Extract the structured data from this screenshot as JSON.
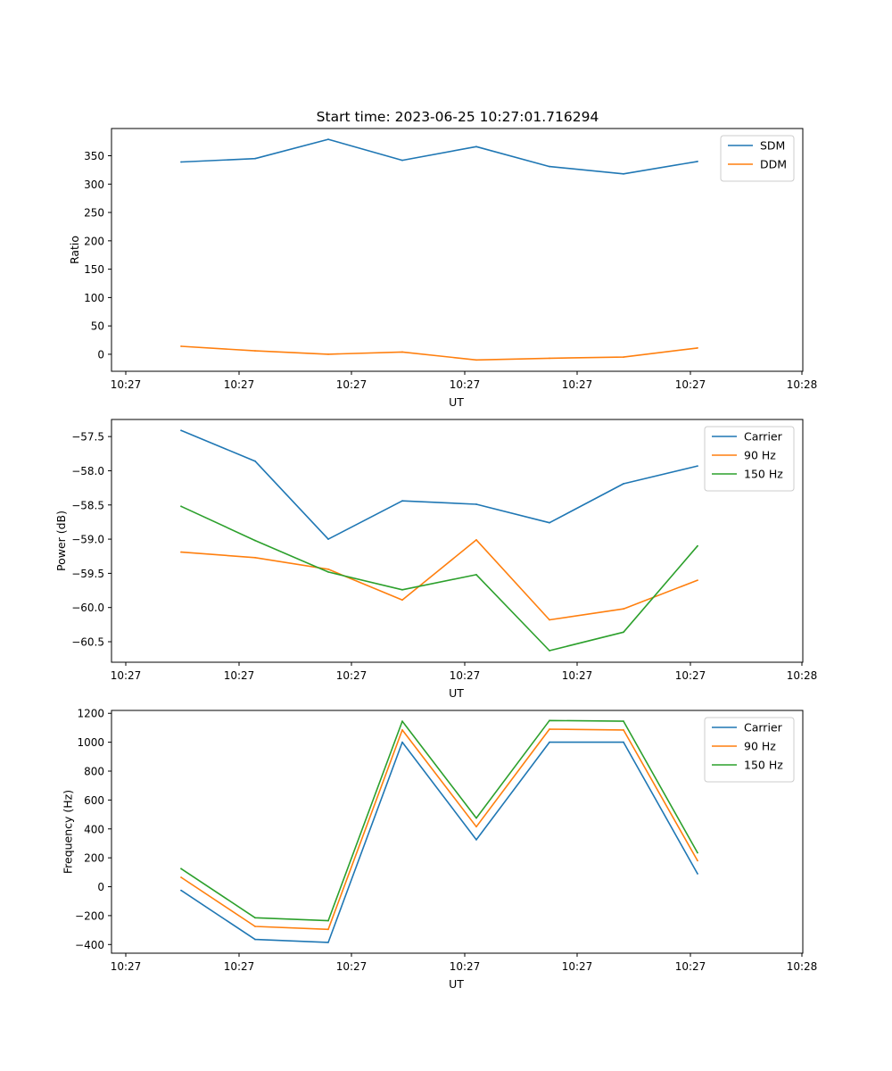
{
  "figure_title": "Start time: 2023-06-25 10:27:01.716294",
  "colors": {
    "blue": "#1f77b4",
    "orange": "#ff7f0e",
    "green": "#2ca02c"
  },
  "chart_data": [
    {
      "type": "line",
      "title": "Start time: 2023-06-25 10:27:01.716294",
      "xlabel": "UT",
      "ylabel": "Ratio",
      "x_tick_labels": [
        "10:27",
        "10:27",
        "10:27",
        "10:27",
        "10:27",
        "10:27",
        "10:28"
      ],
      "y_ticks": [
        0,
        50,
        100,
        150,
        200,
        250,
        300,
        350
      ],
      "ylim": [
        -30,
        398
      ],
      "legend_position": "upper right",
      "grid": false,
      "series": [
        {
          "name": "SDM",
          "color": "blue",
          "values": [
            339,
            345,
            379,
            342,
            366,
            331,
            318,
            340
          ]
        },
        {
          "name": "DDM",
          "color": "orange",
          "values": [
            14,
            6,
            0,
            4,
            -10,
            -7,
            -5,
            11
          ]
        }
      ]
    },
    {
      "type": "line",
      "title": "",
      "xlabel": "UT",
      "ylabel": "Power (dB)",
      "x_tick_labels": [
        "10:27",
        "10:27",
        "10:27",
        "10:27",
        "10:27",
        "10:27",
        "10:28"
      ],
      "y_ticks": [
        -57.5,
        -58.0,
        -58.5,
        -59.0,
        -59.5,
        -60.0,
        -60.5
      ],
      "y_tick_labels": [
        "−57.5",
        "−58.0",
        "−58.5",
        "−59.0",
        "−59.5",
        "−60.0",
        "−60.5"
      ],
      "ylim": [
        -60.8,
        -57.25
      ],
      "legend_position": "upper right",
      "grid": false,
      "series": [
        {
          "name": "Carrier",
          "color": "blue",
          "values": [
            -57.41,
            -57.86,
            -59.0,
            -58.44,
            -58.49,
            -58.76,
            -58.19,
            -57.93
          ]
        },
        {
          "name": "90 Hz",
          "color": "orange",
          "values": [
            -59.19,
            -59.27,
            -59.44,
            -59.89,
            -59.01,
            -60.18,
            -60.02,
            -59.6
          ]
        },
        {
          "name": "150 Hz",
          "color": "green",
          "values": [
            -58.52,
            -59.02,
            -59.48,
            -59.74,
            -59.52,
            -60.63,
            -60.36,
            -59.1
          ]
        }
      ]
    },
    {
      "type": "line",
      "title": "",
      "xlabel": "UT",
      "ylabel": "Frequency (Hz)",
      "x_tick_labels": [
        "10:27",
        "10:27",
        "10:27",
        "10:27",
        "10:27",
        "10:27",
        "10:28"
      ],
      "y_ticks": [
        -400,
        -200,
        0,
        200,
        400,
        600,
        800,
        1000,
        1200
      ],
      "y_tick_labels": [
        "−400",
        "−200",
        "0",
        "200",
        "400",
        "600",
        "800",
        "1000",
        "1200"
      ],
      "ylim": [
        -460,
        1220
      ],
      "legend_position": "upper right",
      "grid": false,
      "series": [
        {
          "name": "Carrier",
          "color": "blue",
          "values": [
            -25,
            -365,
            -385,
            1000,
            325,
            1000,
            1000,
            90
          ]
        },
        {
          "name": "90 Hz",
          "color": "orange",
          "values": [
            65,
            -275,
            -295,
            1085,
            415,
            1090,
            1085,
            180
          ]
        },
        {
          "name": "150 Hz",
          "color": "green",
          "values": [
            125,
            -215,
            -235,
            1145,
            475,
            1150,
            1145,
            235
          ]
        }
      ]
    }
  ]
}
